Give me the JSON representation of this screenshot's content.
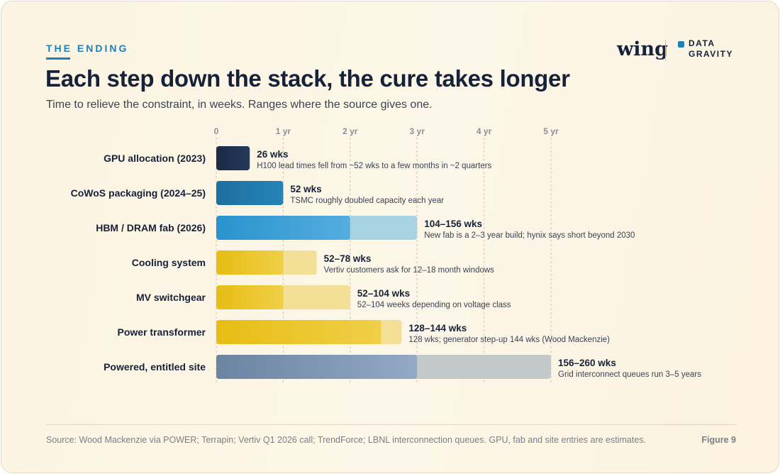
{
  "header": {
    "eyebrow": "THE ENDING",
    "title": "Each step down the stack, the cure takes longer",
    "subtitle": "Time to relieve the constraint, in weeks. Ranges where the source gives one."
  },
  "logo": {
    "wordmark": "wing",
    "line1": "DATA",
    "line2": "GRAVITY",
    "accent": "#1f7fb6"
  },
  "footer": {
    "source": "Source: Wood Mackenzie via POWER; Terrapin; Vertiv Q1 2026 call; TrendForce; LBNL interconnection queues. GPU, fab and site entries are estimates.",
    "figure": "Figure 9"
  },
  "chart_data": {
    "type": "bar",
    "orientation": "horizontal",
    "x_unit": "weeks",
    "xlim": [
      0,
      260
    ],
    "ticks": [
      {
        "value": 0,
        "label": "0"
      },
      {
        "value": 52,
        "label": "1 yr"
      },
      {
        "value": 104,
        "label": "2 yr"
      },
      {
        "value": 156,
        "label": "3 yr"
      },
      {
        "value": 208,
        "label": "4 yr"
      },
      {
        "value": 260,
        "label": "5 yr"
      }
    ],
    "grid": true,
    "rows": [
      {
        "category": "GPU allocation (2023)",
        "low": 26,
        "high": 26,
        "value_label": "26 wks",
        "note": "H100 lead times fell from ~52 wks to a few months in ~2 quarters",
        "color": "#1b2a44",
        "color2": "#233a5c",
        "range_color": "#1b2a44"
      },
      {
        "category": "CoWoS packaging (2024–25)",
        "low": 52,
        "high": 52,
        "value_label": "52 wks",
        "note": "TSMC roughly doubled capacity each year",
        "color": "#1d6f9f",
        "color2": "#2684b8",
        "range_color": "#2684b8"
      },
      {
        "category": "HBM / DRAM fab (2026)",
        "low": 104,
        "high": 156,
        "value_label": "104–156 wks",
        "note": "New fab is a 2–3 year build; hynix says short beyond 2030",
        "color": "#2a93cc",
        "color2": "#55ade0",
        "range_color": "#a9d2e2"
      },
      {
        "category": "Cooling system",
        "low": 52,
        "high": 78,
        "value_label": "52–78 wks",
        "note": "Vertiv customers ask for 12–18 month windows",
        "color": "#e6bd14",
        "color2": "#f0cf48",
        "range_color": "#f3e096"
      },
      {
        "category": "MV switchgear",
        "low": 52,
        "high": 104,
        "value_label": "52–104 wks",
        "note": "52–104 weeks depending on voltage class",
        "color": "#e6bd14",
        "color2": "#f0cf48",
        "range_color": "#f3e096"
      },
      {
        "category": "Power transformer",
        "low": 128,
        "high": 144,
        "value_label": "128–144 wks",
        "note": "128 wks; generator step-up 144 wks (Wood Mackenzie)",
        "color": "#e6bd14",
        "color2": "#f0cf48",
        "range_color": "#f3e096"
      },
      {
        "category": "Powered, entitled site",
        "low": 156,
        "high": 260,
        "value_label": "156–260 wks",
        "note": "Grid interconnect queues run 3–5 years",
        "color": "#6b84a1",
        "color2": "#93a9c4",
        "range_color": "#c3c9c8"
      }
    ]
  }
}
